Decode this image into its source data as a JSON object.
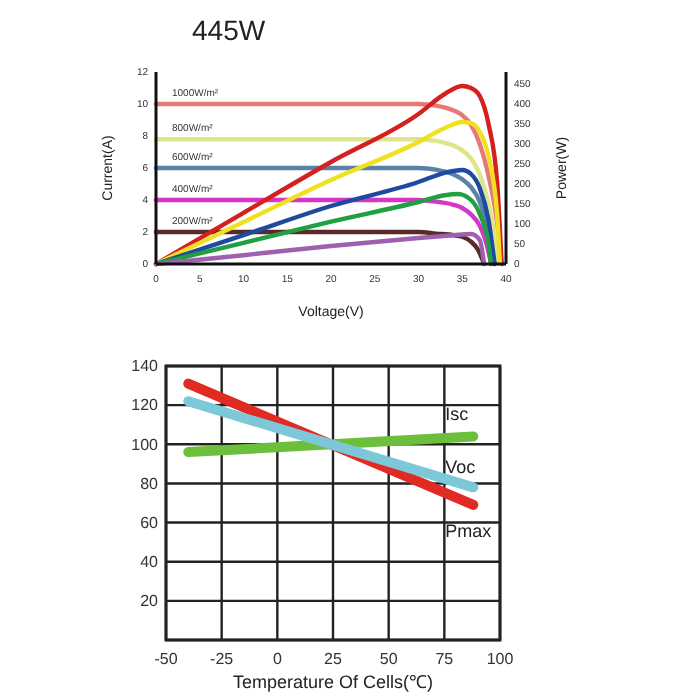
{
  "chart_data": [
    {
      "type": "line",
      "title": "445W",
      "xlabel": "Voltage(V)",
      "ylabel": "Current(A)",
      "y2label": "Power(W)",
      "xlim": [
        0,
        40
      ],
      "xticks": [
        0,
        5,
        10,
        15,
        20,
        25,
        30,
        35,
        40
      ],
      "ylim": [
        0,
        12
      ],
      "yticks": [
        0,
        2,
        4,
        6,
        8,
        10,
        12
      ],
      "y2lim": [
        0,
        480
      ],
      "y2ticks": [
        0,
        50,
        100,
        150,
        200,
        250,
        300,
        350,
        400,
        450
      ],
      "grid": false,
      "marker": "none",
      "annotations": [
        "1000W/m²",
        "800W/m²",
        "600W/m²",
        "400W/m²",
        "200W/m²"
      ],
      "series": [
        {
          "color": "#e87878",
          "x": [
            0,
            30,
            32,
            34,
            35,
            36,
            37,
            38,
            39,
            39.5
          ],
          "values": [
            10,
            10,
            9.9,
            9.6,
            9.3,
            8.7,
            7.5,
            5.5,
            2.5,
            0
          ]
        },
        {
          "color": "#dfe58a",
          "x": [
            0,
            30,
            32,
            34,
            35,
            36,
            37,
            38,
            38.8,
            39.2
          ],
          "values": [
            7.8,
            7.8,
            7.7,
            7.4,
            7.1,
            6.6,
            5.6,
            3.8,
            1.5,
            0
          ]
        },
        {
          "color": "#5a82a8",
          "x": [
            0,
            30,
            32,
            34,
            35,
            36,
            37,
            38,
            38.7
          ],
          "values": [
            6,
            6,
            5.9,
            5.6,
            5.3,
            4.8,
            3.9,
            2,
            0
          ]
        },
        {
          "color": "#d535c8",
          "x": [
            0,
            30,
            32,
            34,
            35,
            36,
            37,
            37.8,
            38.3
          ],
          "values": [
            4,
            4,
            3.9,
            3.7,
            3.5,
            3.1,
            2.4,
            1.2,
            0
          ]
        },
        {
          "color": "#5a2a2a",
          "x": [
            0,
            30,
            32,
            34,
            35,
            36,
            36.8,
            37.5
          ],
          "values": [
            2,
            2,
            1.9,
            1.8,
            1.7,
            1.4,
            0.9,
            0
          ]
        },
        {
          "color": "#d42020",
          "axis": "y2",
          "x": [
            0,
            10,
            20,
            30,
            33,
            35,
            36,
            37,
            38,
            39,
            39.5
          ],
          "values": [
            0,
            128,
            255,
            375,
            425,
            445,
            440,
            420,
            350,
            200,
            0
          ]
        },
        {
          "color": "#f0e020",
          "axis": "y2",
          "x": [
            0,
            10,
            20,
            30,
            33,
            35,
            36,
            37,
            38,
            39,
            39.3
          ],
          "values": [
            0,
            105,
            210,
            305,
            340,
            355,
            352,
            330,
            270,
            120,
            0
          ]
        },
        {
          "color": "#1f4aa0",
          "axis": "y2",
          "x": [
            0,
            10,
            20,
            30,
            33,
            35,
            36,
            37,
            38,
            38.7
          ],
          "values": [
            0,
            72,
            145,
            205,
            228,
            235,
            225,
            190,
            110,
            0
          ]
        },
        {
          "color": "#20a040",
          "axis": "y2",
          "x": [
            0,
            10,
            20,
            30,
            33,
            34.5,
            36,
            37,
            38,
            38.3
          ],
          "values": [
            0,
            53,
            106,
            155,
            172,
            175,
            160,
            125,
            50,
            0
          ]
        },
        {
          "color": "#a060b0",
          "axis": "y2",
          "x": [
            0,
            10,
            20,
            30,
            34,
            36,
            37,
            37.5
          ],
          "values": [
            0,
            22,
            45,
            65,
            72,
            75,
            60,
            0
          ]
        }
      ]
    },
    {
      "type": "line",
      "xlabel": "Temperature Of Cells(℃)",
      "xlim": [
        -50,
        100
      ],
      "xticks": [
        -50,
        -25,
        0,
        25,
        50,
        75,
        100
      ],
      "ylim": [
        0,
        140
      ],
      "yticks": [
        {
          "value": 0,
          "label": null
        },
        20,
        40,
        60,
        80,
        100,
        120,
        140
      ],
      "grid": true,
      "marker": "none",
      "series": [
        {
          "name": "Isc",
          "color": "#6cbf3a",
          "x": [
            -40,
            88
          ],
          "values": [
            96,
            104
          ]
        },
        {
          "name": "Pmax",
          "color": "#e02a22",
          "x": [
            -40,
            88
          ],
          "values": [
            131,
            69
          ]
        },
        {
          "name": "Voc",
          "color": "#7cc8d8",
          "x": [
            -40,
            88
          ],
          "values": [
            122,
            78
          ]
        }
      ]
    }
  ]
}
